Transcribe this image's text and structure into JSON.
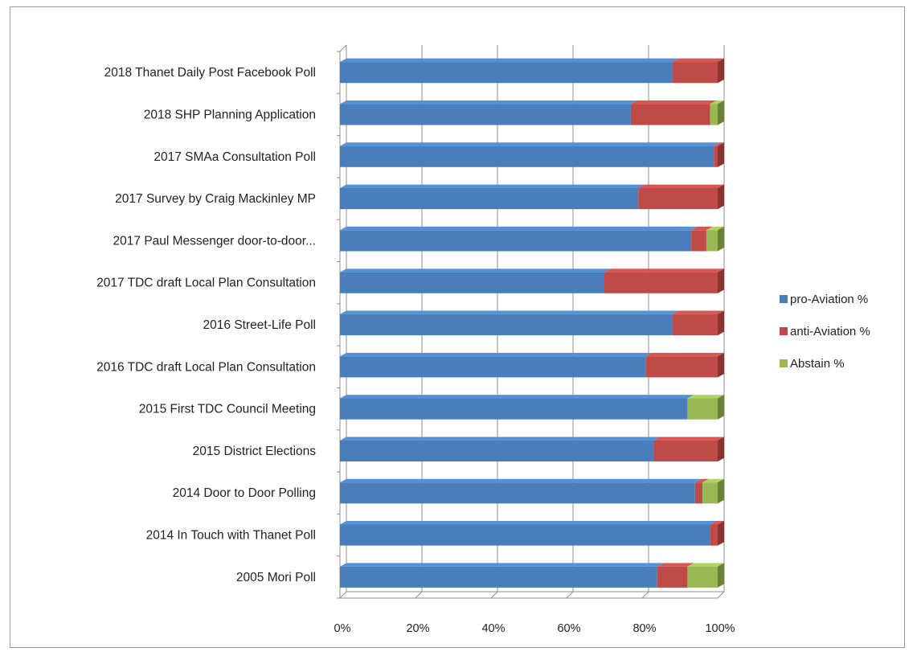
{
  "chart_data": {
    "type": "bar",
    "orientation": "horizontal",
    "stacked": "percent",
    "title": "",
    "xlabel": "",
    "ylabel": "",
    "xlim": [
      0,
      100
    ],
    "x_ticks": [
      "0%",
      "20%",
      "40%",
      "60%",
      "80%",
      "100%"
    ],
    "grid": true,
    "legend_position": "right",
    "categories": [
      "2018 Thanet Daily Post Facebook Poll",
      "2018 SHP Planning Application",
      "2017 SMAa Consultation Poll",
      "2017 Survey by Craig Mackinley MP",
      "2017 Paul Messenger door-to-door...",
      "2017 TDC draft Local Plan Consultation",
      "2016 Street-Life Poll",
      "2016 TDC draft Local Plan Consultation",
      "2015 First TDC Council Meeting",
      "2015 District Elections",
      "2014 Door to Door Polling",
      "2014 In Touch with Thanet Poll",
      "2005 Mori Poll"
    ],
    "series": [
      {
        "name": "pro-Aviation %",
        "color": "#4a7ebb",
        "values": [
          88,
          77,
          99,
          79,
          93,
          70,
          88,
          81,
          92,
          83,
          94,
          98,
          84
        ]
      },
      {
        "name": "anti-Aviation %",
        "color": "#be4b48",
        "values": [
          12,
          21,
          1,
          21,
          4,
          30,
          12,
          19,
          0,
          17,
          2,
          2,
          8
        ]
      },
      {
        "name": "Abstain %",
        "color": "#98b954",
        "values": [
          0,
          2,
          0,
          0,
          3,
          0,
          0,
          0,
          8,
          0,
          4,
          0,
          8
        ]
      }
    ]
  }
}
